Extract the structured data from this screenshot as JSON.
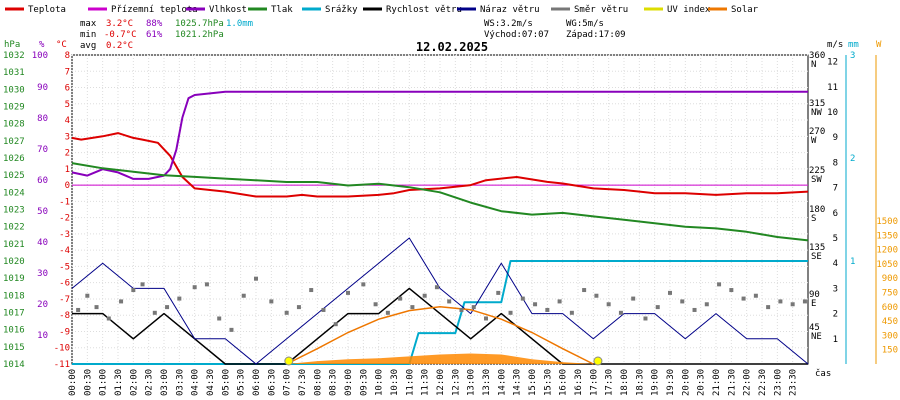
{
  "chart_data": {
    "type": "line",
    "title": "12.02.2025",
    "legend": [
      {
        "name": "Teplota",
        "color": "#dd0000"
      },
      {
        "name": "Přízemní teplota",
        "color": "#cc00cc"
      },
      {
        "name": "Vlhkost",
        "color": "#8800bb"
      },
      {
        "name": "Tlak",
        "color": "#228822"
      },
      {
        "name": "Srážky",
        "color": "#00aacc"
      },
      {
        "name": "Rychlost větru",
        "color": "#000000"
      },
      {
        "name": "Náraz větru",
        "color": "#000088"
      },
      {
        "name": "Směr větru",
        "color": "#777777"
      },
      {
        "name": "UV index",
        "color": "#dddd00"
      },
      {
        "name": "Solar",
        "color": "#ee7700"
      }
    ],
    "stats": {
      "max_label": "max",
      "min_label": "min",
      "avg_label": "avg",
      "max_temp": "3.2°C",
      "max_hum": "88%",
      "max_press": "1025.7hPa",
      "rain": "1.0mm",
      "min_temp": "-0.7°C",
      "min_hum": "61%",
      "min_press": "1021.2hPa",
      "avg_temp": "0.2°C",
      "ws": "WS:3.2m/s",
      "wg": "WG:5m/s",
      "sunrise": "Východ:07:07",
      "sunset": "Západ:17:09"
    },
    "axes": {
      "hpa": {
        "label": "hPa",
        "ticks": [
          "1032",
          "1031",
          "1030",
          "1029",
          "1028",
          "1027",
          "1026",
          "1025",
          "1024",
          "1023",
          "1022",
          "1021",
          "1020",
          "1019",
          "1018",
          "1017",
          "1016",
          "1015",
          "1014"
        ]
      },
      "pct": {
        "label": "%",
        "ticks": [
          "100",
          "90",
          "80",
          "70",
          "60",
          "50",
          "40",
          "30",
          "20",
          "10"
        ]
      },
      "degc": {
        "label": "°C",
        "ticks": [
          "8",
          "7",
          "6",
          "5",
          "4",
          "3",
          "2",
          "1",
          "0",
          "-1",
          "-2",
          "-3",
          "-4",
          "-5",
          "-6",
          "-7",
          "-8",
          "-9",
          "-10",
          "-11"
        ]
      },
      "dir": {
        "ticks": [
          "360",
          "315",
          "270",
          "225",
          "180",
          "135",
          "90",
          "45"
        ],
        "names": [
          "N",
          "NW",
          "W",
          "SW",
          "S",
          "SE",
          "E",
          "NE"
        ]
      },
      "ms": {
        "label": "m/s",
        "ticks": [
          "12",
          "11",
          "10",
          "9",
          "8",
          "7",
          "6",
          "5",
          "4",
          "3",
          "2",
          "1"
        ]
      },
      "mm": {
        "label": "mm",
        "ticks": [
          "3",
          "2",
          "1"
        ]
      },
      "wm2": {
        "label": "W",
        "ticks": [
          "1500",
          "1350",
          "1200",
          "1050",
          "900",
          "750",
          "600",
          "450",
          "300",
          "150"
        ]
      },
      "time_label": "čas",
      "time_ticks": [
        "00:00",
        "00:30",
        "01:00",
        "01:30",
        "02:00",
        "02:30",
        "03:00",
        "03:30",
        "04:00",
        "04:30",
        "05:00",
        "05:30",
        "06:00",
        "06:30",
        "07:00",
        "07:30",
        "08:00",
        "08:30",
        "09:00",
        "09:30",
        "10:00",
        "10:30",
        "11:00",
        "11:30",
        "12:00",
        "12:30",
        "13:00",
        "13:30",
        "14:00",
        "14:30",
        "15:00",
        "15:30",
        "16:00",
        "16:30",
        "17:00",
        "17:30",
        "18:00",
        "18:30",
        "19:00",
        "19:30",
        "20:00",
        "20:30",
        "21:00",
        "21:30",
        "22:00",
        "22:30",
        "23:00",
        "23:30"
      ]
    },
    "xlim_hours": [
      0,
      24
    ],
    "ground_temp_const": 0,
    "series": [
      {
        "name": "Teplota",
        "axis": "degc",
        "x": [
          0,
          0.3,
          1,
          1.5,
          2,
          2.3,
          2.8,
          3.2,
          3.6,
          4.0,
          4.5,
          5,
          6,
          7,
          7.5,
          8,
          9,
          10,
          10.5,
          11,
          12,
          13,
          13.5,
          14.5,
          15.5,
          16,
          17,
          18,
          19,
          20,
          21,
          22,
          23,
          24
        ],
        "y": [
          2.9,
          2.8,
          3.0,
          3.2,
          2.9,
          2.8,
          2.6,
          1.8,
          0.5,
          -0.2,
          -0.3,
          -0.4,
          -0.7,
          -0.7,
          -0.6,
          -0.7,
          -0.7,
          -0.6,
          -0.5,
          -0.3,
          -0.2,
          0.0,
          0.3,
          0.5,
          0.2,
          0.1,
          -0.2,
          -0.3,
          -0.5,
          -0.5,
          -0.6,
          -0.5,
          -0.5,
          -0.4
        ]
      },
      {
        "name": "Vlhkost",
        "axis": "pct",
        "x": [
          0,
          0.5,
          1,
          1.5,
          2,
          2.5,
          3,
          3.2,
          3.4,
          3.6,
          3.8,
          4,
          5,
          6,
          7,
          8,
          9,
          10,
          11,
          12,
          13,
          14,
          15,
          16,
          17,
          18,
          19,
          20,
          21,
          22,
          23,
          24
        ],
        "y": [
          63,
          62,
          64,
          63,
          61,
          61,
          62,
          64,
          70,
          80,
          86,
          87,
          88,
          88,
          88,
          88,
          88,
          88,
          88,
          88,
          88,
          88,
          88,
          88,
          88,
          88,
          88,
          88,
          88,
          88,
          88,
          88
        ]
      },
      {
        "name": "Tlak",
        "axis": "hpa",
        "x": [
          0,
          1,
          2,
          3,
          4,
          5,
          6,
          7,
          8,
          9,
          10,
          11,
          12,
          13,
          14,
          15,
          16,
          17,
          18,
          19,
          20,
          21,
          22,
          23,
          24
        ],
        "y": [
          1025.7,
          1025.4,
          1025.2,
          1025.0,
          1024.9,
          1024.8,
          1024.7,
          1024.6,
          1024.6,
          1024.4,
          1024.5,
          1024.3,
          1024.0,
          1023.4,
          1022.9,
          1022.7,
          1022.8,
          1022.6,
          1022.4,
          1022.2,
          1022.0,
          1021.9,
          1021.7,
          1021.4,
          1021.2
        ]
      },
      {
        "name": "Srážky",
        "axis": "mm",
        "x": [
          0,
          11,
          11.3,
          12.5,
          12.8,
          14,
          14.3,
          24
        ],
        "y": [
          0,
          0,
          0.3,
          0.3,
          0.6,
          0.6,
          1.0,
          1.0
        ]
      },
      {
        "name": "Rychlost větru",
        "axis": "ms",
        "x": [
          0,
          1,
          2,
          3,
          4,
          5,
          6,
          7,
          8,
          9,
          10,
          11,
          12,
          13,
          14,
          15,
          16,
          17,
          18,
          19,
          20,
          21,
          22,
          23,
          24
        ],
        "y": [
          2,
          2,
          1,
          2,
          1,
          0,
          0,
          0,
          1,
          2,
          2,
          3,
          2,
          1,
          2,
          1,
          0,
          0,
          0,
          0,
          0,
          0,
          0,
          0,
          0
        ]
      },
      {
        "name": "Náraz větru",
        "axis": "ms",
        "x": [
          0,
          1,
          2,
          3,
          4,
          5,
          6,
          7,
          8,
          9,
          10,
          11,
          12,
          13,
          14,
          15,
          16,
          17,
          18,
          19,
          20,
          21,
          22,
          23,
          24
        ],
        "y": [
          3,
          4,
          3,
          3,
          1,
          1,
          0,
          1,
          2,
          3,
          4,
          5,
          3,
          2,
          4,
          2,
          2,
          1,
          2,
          2,
          1,
          2,
          1,
          1,
          0
        ]
      },
      {
        "name": "Solar",
        "axis": "wm2",
        "x": [
          7,
          8,
          9,
          10,
          11,
          12,
          13,
          14,
          15,
          16,
          17
        ],
        "y": [
          0,
          30,
          50,
          60,
          80,
          100,
          110,
          100,
          50,
          20,
          0
        ]
      },
      {
        "name": "Solar max",
        "axis": "wm2",
        "x": [
          7,
          8,
          9,
          10,
          11,
          12,
          13,
          14,
          15,
          16,
          17
        ],
        "y": [
          0,
          160,
          330,
          470,
          560,
          600,
          570,
          470,
          330,
          160,
          0
        ]
      },
      {
        "name": "Směr větru",
        "axis": "dir",
        "type": "scatter",
        "x": [
          0.2,
          0.5,
          0.8,
          1.2,
          1.6,
          2,
          2.3,
          2.7,
          3.1,
          3.5,
          4,
          4.4,
          4.8,
          5.2,
          5.6,
          6,
          6.5,
          7,
          7.4,
          7.8,
          8.2,
          8.6,
          9,
          9.5,
          9.9,
          10.3,
          10.7,
          11.1,
          11.5,
          11.9,
          12.3,
          12.7,
          13.1,
          13.5,
          13.9,
          14.3,
          14.7,
          15.1,
          15.5,
          15.9,
          16.3,
          16.7,
          17.1,
          17.5,
          17.9,
          18.3,
          18.7,
          19.1,
          19.5,
          19.9,
          20.3,
          20.7,
          21.1,
          21.5,
          21.9,
          22.3,
          22.7,
          23.1,
          23.5,
          23.9
        ],
        "y": [
          95,
          120,
          100,
          80,
          110,
          130,
          140,
          90,
          100,
          115,
          135,
          140,
          80,
          60,
          120,
          150,
          110,
          90,
          100,
          130,
          95,
          70,
          125,
          140,
          105,
          90,
          115,
          100,
          120,
          135,
          110,
          95,
          100,
          80,
          125,
          90,
          115,
          105,
          95,
          110,
          90,
          130,
          120,
          105,
          90,
          115,
          80,
          100,
          125,
          110,
          95,
          105,
          140,
          130,
          115,
          120,
          100,
          110,
          105,
          110
        ]
      },
      {
        "name": "Sun markers",
        "axis": "wm2",
        "type": "marker",
        "x": [
          7.07,
          17.15
        ],
        "y": [
          0,
          0
        ]
      }
    ]
  }
}
